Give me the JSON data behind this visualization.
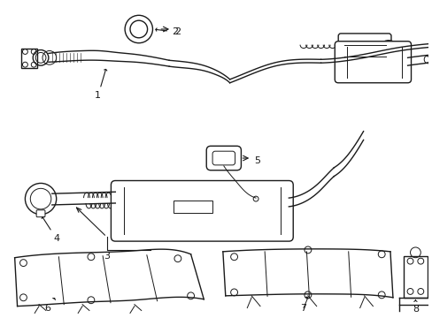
{
  "background_color": "#ffffff",
  "line_color": "#1a1a1a",
  "label_color": "#000000",
  "figure_width": 4.89,
  "figure_height": 3.6,
  "dpi": 100
}
